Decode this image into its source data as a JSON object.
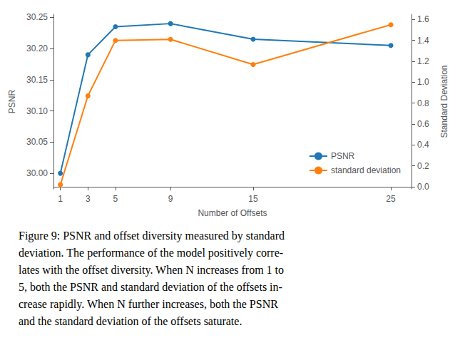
{
  "chart_data": {
    "type": "line",
    "x": [
      1,
      3,
      5,
      9,
      15,
      25
    ],
    "series": [
      {
        "name": "PSNR",
        "color": "#1f77b4",
        "marker": "circle",
        "values": [
          30.0,
          30.19,
          30.235,
          30.24,
          30.215,
          30.205
        ]
      },
      {
        "name": "standard deviation",
        "color": "#ff7f0e",
        "marker": "circle",
        "axis": "y2",
        "values": [
          0.02,
          0.87,
          1.4,
          1.41,
          1.17,
          1.55
        ]
      }
    ],
    "xlabel": "Number of Offsets",
    "ylabel": "PSNR",
    "y2label": "Standard Deviation",
    "xlim": [
      0.5,
      26.5
    ],
    "xticks": [
      1,
      3,
      5,
      9,
      15,
      25
    ],
    "ylim": [
      29.975,
      30.255
    ],
    "yticks": [
      {
        "value": 30.0,
        "label": "30.00"
      },
      30.05,
      {
        "value": 30.1,
        "label": "30.10"
      },
      30.15,
      {
        "value": 30.2,
        "label": "30.20"
      },
      30.25
    ],
    "y2lim": [
      -0.02,
      1.65
    ],
    "y2ticks": [
      {
        "value": 0.0,
        "label": "0.0"
      },
      0.2,
      0.4,
      0.6,
      0.8,
      {
        "value": 1.0,
        "label": "1.0"
      },
      1.2,
      1.4,
      1.6
    ],
    "legend": "lower right",
    "grid": false,
    "caption": [
      "Figure 9: PSNR and offset diversity measured by standard",
      "deviation. The performance of the model positively corre-",
      "lates with the offset diversity. When N increases from 1 to",
      "5, both the PSNR and standard deviation of the offsets in-",
      "crease rapidly. When N further increases, both the PSNR",
      "and the standard deviation of the offsets saturate."
    ]
  }
}
